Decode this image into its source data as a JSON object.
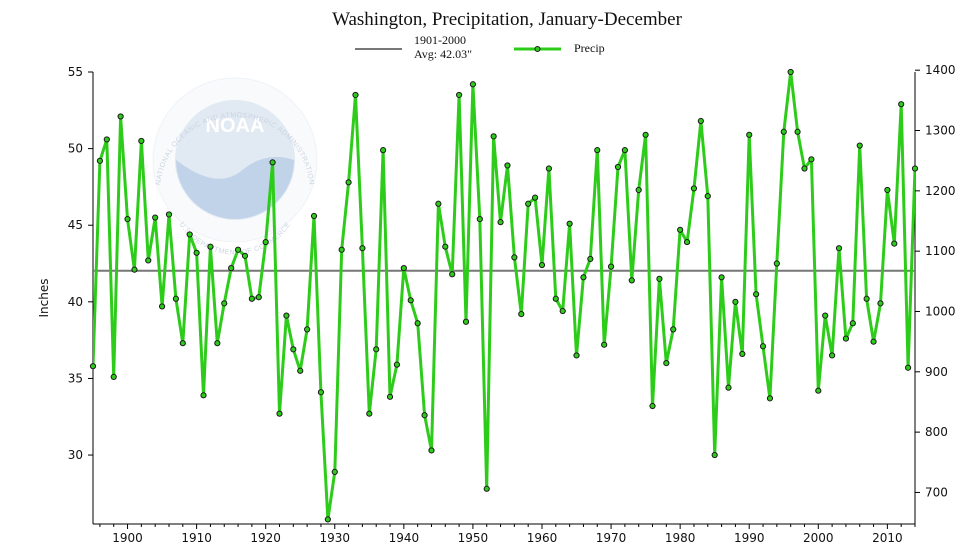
{
  "chart_data": {
    "type": "line",
    "title": "Washington, Precipitation, January-December",
    "ylabel": "Inches",
    "xlabel": "",
    "xlim": [
      1895,
      2014
    ],
    "ylim": [
      25.5,
      55
    ],
    "secondary_ylim_mm": [
      650,
      1400
    ],
    "x_ticks": [
      "1900",
      "1910",
      "1920",
      "1930",
      "1940",
      "1950",
      "1960",
      "1970",
      "1980",
      "1990",
      "2000",
      "2010"
    ],
    "y_ticks": [
      "30",
      "35",
      "40",
      "45",
      "50",
      "55"
    ],
    "y2_ticks": [
      "700",
      "800",
      "900",
      "1000",
      "1100",
      "1200",
      "1300",
      "1400"
    ],
    "legend": {
      "baseline_label": "1901-2000",
      "baseline_avg": "Avg: 42.03\"",
      "series_label": "Precip"
    },
    "baseline": {
      "name": "1901-2000 Avg",
      "value": 42.03
    },
    "series": [
      {
        "name": "Precip",
        "color": "#2ecc1a",
        "x": [
          1895,
          1896,
          1897,
          1898,
          1899,
          1900,
          1901,
          1902,
          1903,
          1904,
          1905,
          1906,
          1907,
          1908,
          1909,
          1910,
          1911,
          1912,
          1913,
          1914,
          1915,
          1916,
          1917,
          1918,
          1919,
          1920,
          1921,
          1922,
          1923,
          1924,
          1925,
          1926,
          1927,
          1928,
          1929,
          1930,
          1931,
          1932,
          1933,
          1934,
          1935,
          1936,
          1937,
          1938,
          1939,
          1940,
          1941,
          1942,
          1943,
          1944,
          1945,
          1946,
          1947,
          1948,
          1949,
          1950,
          1951,
          1952,
          1953,
          1954,
          1955,
          1956,
          1957,
          1958,
          1959,
          1960,
          1961,
          1962,
          1963,
          1964,
          1965,
          1966,
          1967,
          1968,
          1969,
          1970,
          1971,
          1972,
          1973,
          1974,
          1975,
          1976,
          1977,
          1978,
          1979,
          1980,
          1981,
          1982,
          1983,
          1984,
          1985,
          1986,
          1987,
          1988,
          1989,
          1990,
          1991,
          1992,
          1993,
          1994,
          1995,
          1996,
          1997,
          1998,
          1999,
          2000,
          2001,
          2002,
          2003,
          2004,
          2005,
          2006,
          2007,
          2008,
          2009,
          2010,
          2011,
          2012,
          2013,
          2014
        ],
        "values": [
          35.8,
          49.2,
          50.6,
          35.1,
          52.1,
          45.4,
          42.1,
          50.5,
          42.7,
          45.5,
          39.7,
          45.7,
          40.2,
          37.3,
          44.4,
          43.2,
          33.9,
          43.6,
          37.3,
          39.9,
          42.2,
          43.4,
          43.0,
          40.2,
          40.3,
          43.9,
          49.1,
          32.7,
          39.1,
          36.9,
          35.5,
          38.2,
          45.6,
          34.1,
          25.8,
          28.9,
          43.4,
          47.8,
          53.5,
          43.5,
          32.7,
          36.9,
          49.9,
          33.8,
          35.9,
          42.2,
          40.1,
          38.6,
          32.6,
          30.3,
          46.4,
          43.6,
          41.8,
          53.5,
          38.7,
          54.2,
          45.4,
          27.8,
          50.8,
          45.2,
          48.9,
          42.9,
          39.2,
          46.4,
          46.8,
          42.4,
          48.7,
          40.2,
          39.4,
          45.1,
          36.5,
          41.6,
          42.8,
          49.9,
          37.2,
          42.3,
          48.8,
          49.9,
          41.4,
          47.3,
          50.9,
          33.2,
          41.5,
          36.0,
          38.2,
          44.7,
          43.9,
          47.4,
          51.8,
          46.9,
          30.0,
          41.6,
          34.4,
          40.0,
          36.6,
          50.9,
          40.5,
          37.1,
          33.7,
          42.5,
          51.1,
          55.0,
          51.1,
          48.7,
          49.3,
          34.2,
          39.1,
          36.5,
          43.5,
          37.6,
          38.6,
          50.2,
          40.2,
          37.4,
          39.9,
          47.3,
          43.8,
          52.9,
          35.7,
          48.7
        ]
      }
    ],
    "watermark": {
      "logo": "NOAA",
      "text_top": "NATIONAL OCEANIC AND ATMOSPHERIC ADMINISTRATION",
      "text_bottom": "U.S. DEPARTMENT OF COMMERCE"
    }
  }
}
